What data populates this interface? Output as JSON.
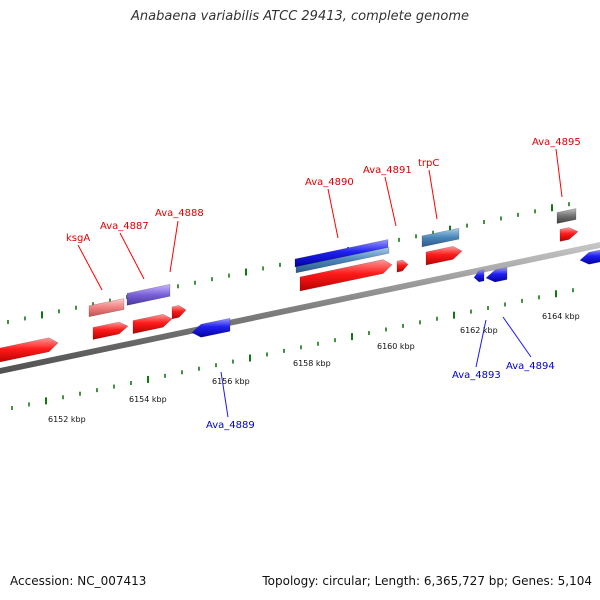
{
  "title": "Anabaena variabilis ATCC 29413, complete genome",
  "footer": {
    "accession": "Accession: NC_007413",
    "stats": "Topology: circular; Length: 6,365,727 bp; Genes: 5,104"
  },
  "colors": {
    "forward_gene": "#ff0000",
    "reverse_gene": "#1a1aee",
    "forward_label": "#dd0000",
    "reverse_label": "#0000cc",
    "tick": "#117711",
    "genome_line": "#8a8a8a"
  },
  "scale_labels": [
    "6152 kbp",
    "6154 kbp",
    "6156 kbp",
    "6158 kbp",
    "6160 kbp",
    "6162 kbp",
    "6164 kbp"
  ],
  "forward_labels": [
    "ksgA",
    "Ava_4887",
    "Ava_4888",
    "Ava_4890",
    "Ava_4891",
    "trpC",
    "Ava_4895"
  ],
  "reverse_labels": [
    "Ava_4889",
    "Ava_4893",
    "Ava_4894"
  ]
}
